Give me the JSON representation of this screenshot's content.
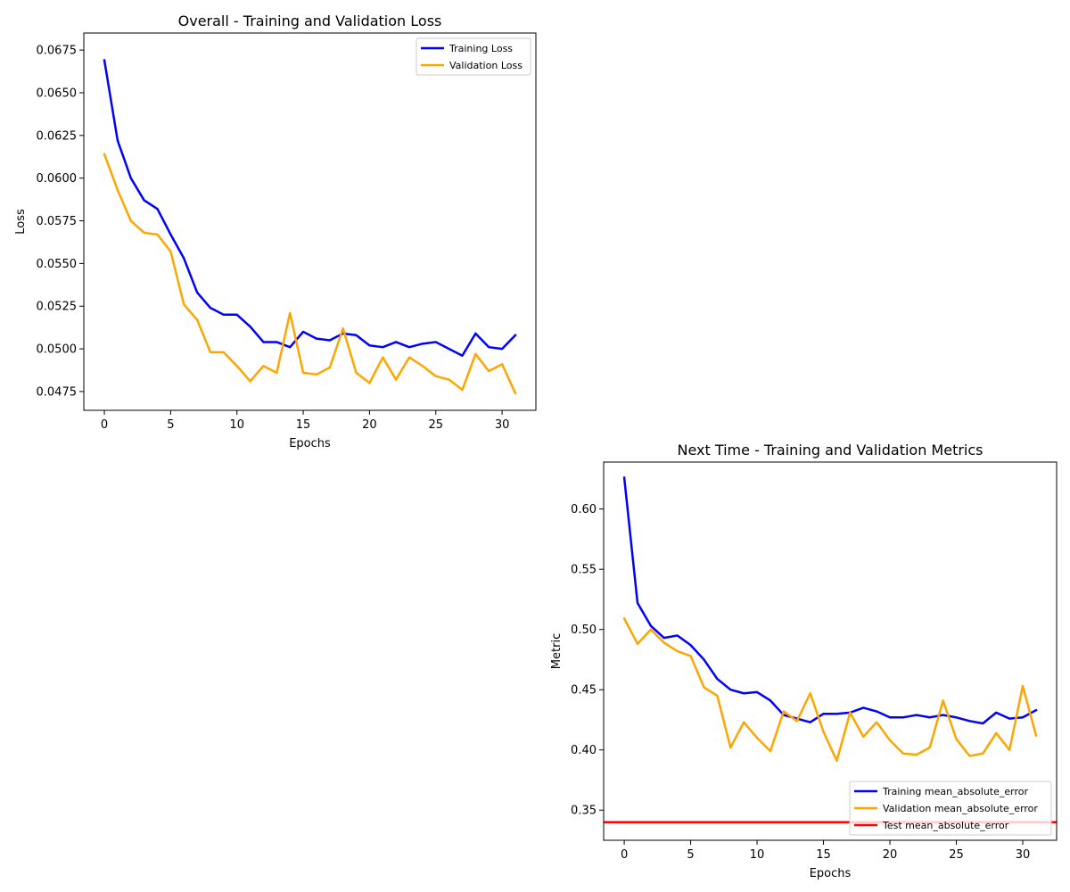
{
  "colors": {
    "training": "#0000ff",
    "validation": "#ffa500",
    "test": "#ff0000",
    "axes": "#000000",
    "background": "#ffffff"
  },
  "chart_data": [
    {
      "type": "line",
      "title": "Overall - Training and Validation Loss",
      "xlabel": "Epochs",
      "ylabel": "Loss",
      "xlim": [
        -1.55,
        32.55
      ],
      "ylim": [
        0.0464,
        0.0685
      ],
      "xticks": [
        0,
        5,
        10,
        15,
        20,
        25,
        30
      ],
      "xtick_labels": [
        "0",
        "5",
        "10",
        "15",
        "20",
        "25",
        "30"
      ],
      "yticks": [
        0.0475,
        0.05,
        0.0525,
        0.055,
        0.0575,
        0.06,
        0.0625,
        0.065,
        0.0675
      ],
      "ytick_labels": [
        "0.0475",
        "0.0500",
        "0.0525",
        "0.0550",
        "0.0575",
        "0.0600",
        "0.0625",
        "0.0650",
        "0.0675"
      ],
      "grid": false,
      "legend_position": "top-right",
      "x": [
        0,
        1,
        2,
        3,
        4,
        5,
        6,
        7,
        8,
        9,
        10,
        11,
        12,
        13,
        14,
        15,
        16,
        17,
        18,
        19,
        20,
        21,
        22,
        23,
        24,
        25,
        26,
        27,
        28,
        29,
        30,
        31
      ],
      "series": [
        {
          "name": "Training Loss",
          "color_key": "training",
          "values": [
            0.0669,
            0.0622,
            0.06,
            0.0587,
            0.0582,
            0.0567,
            0.0553,
            0.0533,
            0.0524,
            0.052,
            0.052,
            0.0513,
            0.0504,
            0.0504,
            0.0501,
            0.051,
            0.0506,
            0.0505,
            0.0509,
            0.0508,
            0.0502,
            0.0501,
            0.0504,
            0.0501,
            0.0503,
            0.0504,
            0.05,
            0.0496,
            0.0509,
            0.0501,
            0.05,
            0.0508
          ]
        },
        {
          "name": "Validation Loss",
          "color_key": "validation",
          "values": [
            0.0614,
            0.0593,
            0.0575,
            0.0568,
            0.0567,
            0.0557,
            0.0526,
            0.0517,
            0.0498,
            0.0498,
            0.049,
            0.0481,
            0.049,
            0.0486,
            0.0521,
            0.0486,
            0.0485,
            0.0489,
            0.0512,
            0.0486,
            0.048,
            0.0495,
            0.0482,
            0.0495,
            0.049,
            0.0484,
            0.0482,
            0.0476,
            0.0497,
            0.0487,
            0.0491,
            0.0474
          ]
        }
      ]
    },
    {
      "type": "line",
      "title": "Next Time - Training and Validation Metrics",
      "xlabel": "Epochs",
      "ylabel": "Metric",
      "xlim": [
        -1.55,
        32.55
      ],
      "ylim": [
        0.325,
        0.639
      ],
      "xticks": [
        0,
        5,
        10,
        15,
        20,
        25,
        30
      ],
      "xtick_labels": [
        "0",
        "5",
        "10",
        "15",
        "20",
        "25",
        "30"
      ],
      "yticks": [
        0.35,
        0.4,
        0.45,
        0.5,
        0.55,
        0.6
      ],
      "ytick_labels": [
        "0.35",
        "0.40",
        "0.45",
        "0.50",
        "0.55",
        "0.60"
      ],
      "grid": false,
      "legend_position": "bottom-right",
      "x": [
        0,
        1,
        2,
        3,
        4,
        5,
        6,
        7,
        8,
        9,
        10,
        11,
        12,
        13,
        14,
        15,
        16,
        17,
        18,
        19,
        20,
        21,
        22,
        23,
        24,
        25,
        26,
        27,
        28,
        29,
        30,
        31
      ],
      "series": [
        {
          "name": "Training mean_absolute_error",
          "color_key": "training",
          "values": [
            0.626,
            0.522,
            0.503,
            0.493,
            0.495,
            0.487,
            0.475,
            0.459,
            0.45,
            0.447,
            0.448,
            0.441,
            0.429,
            0.426,
            0.423,
            0.43,
            0.43,
            0.431,
            0.435,
            0.432,
            0.427,
            0.427,
            0.429,
            0.427,
            0.429,
            0.427,
            0.424,
            0.422,
            0.431,
            0.426,
            0.427,
            0.433
          ]
        },
        {
          "name": "Validation mean_absolute_error",
          "color_key": "validation",
          "values": [
            0.509,
            0.488,
            0.5,
            0.489,
            0.482,
            0.478,
            0.452,
            0.445,
            0.402,
            0.423,
            0.41,
            0.399,
            0.432,
            0.424,
            0.447,
            0.415,
            0.391,
            0.431,
            0.411,
            0.423,
            0.408,
            0.397,
            0.396,
            0.402,
            0.441,
            0.409,
            0.395,
            0.397,
            0.414,
            0.4,
            0.453,
            0.412
          ]
        },
        {
          "name": "Test mean_absolute_error",
          "color_key": "test",
          "hline": 0.34
        }
      ]
    }
  ]
}
